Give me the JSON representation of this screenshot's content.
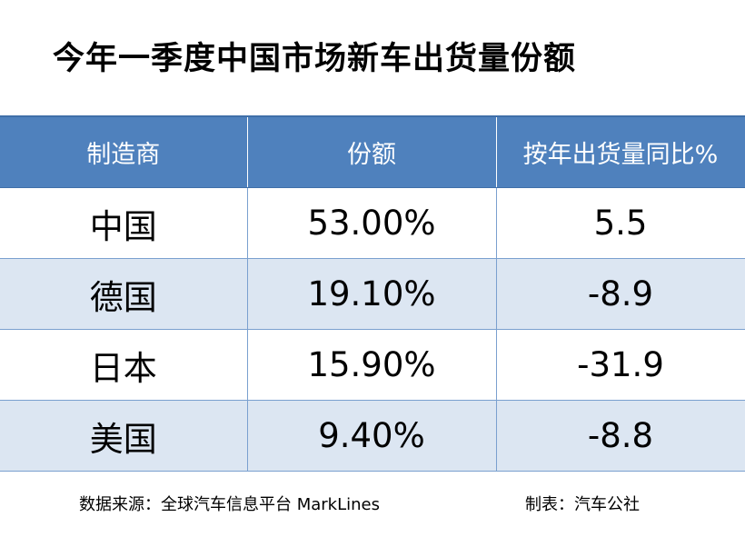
{
  "title": "今年一季度中国市场新车出货量份额",
  "chart_data": {
    "type": "table",
    "title": "今年一季度中国市场新车出货量份额",
    "columns": [
      "制造商",
      "份额",
      "按年出货量同比%"
    ],
    "rows": [
      {
        "maker": "中国",
        "share": "53.00%",
        "yoy": "5.5"
      },
      {
        "maker": "德国",
        "share": "19.10%",
        "yoy": "-8.9"
      },
      {
        "maker": "日本",
        "share": "15.90%",
        "yoy": "-31.9"
      },
      {
        "maker": "美国",
        "share": "9.40%",
        "yoy": "-8.8"
      }
    ],
    "header_color": "#4f81bd",
    "alt_row_color": "#dce6f2"
  },
  "footer": {
    "source": "数据来源：全球汽车信息平台 MarkLines",
    "made_by": "制表：汽车公社"
  }
}
